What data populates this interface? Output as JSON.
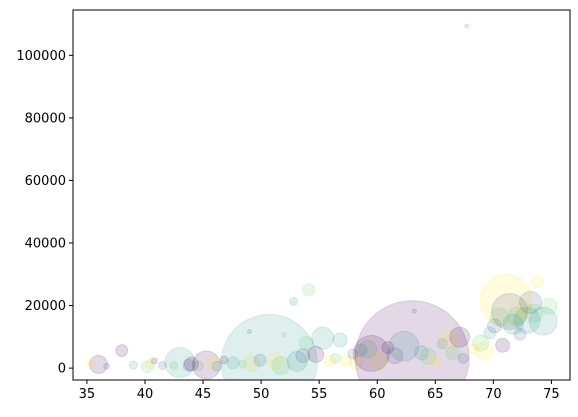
{
  "chart_data": {
    "type": "scatter",
    "title": "",
    "xlabel": "",
    "ylabel": "",
    "xlim": [
      33.8,
      76.6
    ],
    "ylim": [
      -3800,
      114500
    ],
    "x_ticks": [
      35,
      40,
      45,
      50,
      55,
      60,
      65,
      70,
      75
    ],
    "y_ticks": [
      0,
      20000,
      40000,
      60000,
      80000,
      100000
    ],
    "grid": false,
    "marker_alpha": 0.15,
    "colormap": "viridis",
    "points": [
      {
        "x": 36.0,
        "y": 1200,
        "size": 9,
        "color": "#440154"
      },
      {
        "x": 35.3,
        "y": 1600,
        "size": 4,
        "color": "#fde725"
      },
      {
        "x": 36.7,
        "y": 600,
        "size": 3,
        "color": "#3b528b"
      },
      {
        "x": 38.0,
        "y": 5600,
        "size": 6,
        "color": "#440154"
      },
      {
        "x": 39.0,
        "y": 1000,
        "size": 4,
        "color": "#21918c"
      },
      {
        "x": 40.2,
        "y": 500,
        "size": 6,
        "color": "#5ec962"
      },
      {
        "x": 40.5,
        "y": 1500,
        "size": 5,
        "color": "#fde725"
      },
      {
        "x": 40.8,
        "y": 2300,
        "size": 3,
        "color": "#440154"
      },
      {
        "x": 41.5,
        "y": 800,
        "size": 4,
        "color": "#3b528b"
      },
      {
        "x": 42.5,
        "y": 800,
        "size": 4,
        "color": "#5ec962"
      },
      {
        "x": 43.0,
        "y": 1800,
        "size": 15,
        "color": "#21918c"
      },
      {
        "x": 43.8,
        "y": 900,
        "size": 6,
        "color": "#3b528b"
      },
      {
        "x": 44.0,
        "y": 1300,
        "size": 7,
        "color": "#440154"
      },
      {
        "x": 44.6,
        "y": 700,
        "size": 5,
        "color": "#5ec962"
      },
      {
        "x": 45.3,
        "y": 1000,
        "size": 14,
        "color": "#440154"
      },
      {
        "x": 45.9,
        "y": 1800,
        "size": 7,
        "color": "#fde725"
      },
      {
        "x": 46.2,
        "y": 600,
        "size": 5,
        "color": "#21918c"
      },
      {
        "x": 46.8,
        "y": 2600,
        "size": 4,
        "color": "#440154"
      },
      {
        "x": 47.6,
        "y": 1700,
        "size": 6,
        "color": "#21918c"
      },
      {
        "x": 48.4,
        "y": 1300,
        "size": 4,
        "color": "#5ec962"
      },
      {
        "x": 49.0,
        "y": 11700,
        "size": 2,
        "color": "#3b528b"
      },
      {
        "x": 49.2,
        "y": 1500,
        "size": 8,
        "color": "#fde725"
      },
      {
        "x": 49.9,
        "y": 2500,
        "size": 6,
        "color": "#3b528b"
      },
      {
        "x": 50.7,
        "y": 1800,
        "size": 48,
        "color": "#21918c"
      },
      {
        "x": 51.2,
        "y": 2200,
        "size": 8,
        "color": "#fde725"
      },
      {
        "x": 51.7,
        "y": 800,
        "size": 9,
        "color": "#5ec962"
      },
      {
        "x": 52.0,
        "y": 10700,
        "size": 2,
        "color": "#5ec962"
      },
      {
        "x": 52.8,
        "y": 21300,
        "size": 4,
        "color": "#21918c"
      },
      {
        "x": 53.1,
        "y": 2100,
        "size": 10,
        "color": "#21918c"
      },
      {
        "x": 53.6,
        "y": 4000,
        "size": 7,
        "color": "#3b528b"
      },
      {
        "x": 53.9,
        "y": 7900,
        "size": 7,
        "color": "#5ec962"
      },
      {
        "x": 54.1,
        "y": 25000,
        "size": 6,
        "color": "#5ec962"
      },
      {
        "x": 54.7,
        "y": 4400,
        "size": 8,
        "color": "#440154"
      },
      {
        "x": 55.3,
        "y": 9600,
        "size": 11,
        "color": "#21918c"
      },
      {
        "x": 55.9,
        "y": 2300,
        "size": 6,
        "color": "#fde725"
      },
      {
        "x": 56.4,
        "y": 3100,
        "size": 5,
        "color": "#5ec962"
      },
      {
        "x": 56.8,
        "y": 9000,
        "size": 7,
        "color": "#21918c"
      },
      {
        "x": 57.3,
        "y": 2400,
        "size": 6,
        "color": "#fde725"
      },
      {
        "x": 57.9,
        "y": 4500,
        "size": 5,
        "color": "#3b528b"
      },
      {
        "x": 58.2,
        "y": 1800,
        "size": 7,
        "color": "#fde725"
      },
      {
        "x": 58.6,
        "y": 5800,
        "size": 6,
        "color": "#21918c"
      },
      {
        "x": 59.2,
        "y": 6000,
        "size": 9,
        "color": "#5ec962"
      },
      {
        "x": 59.5,
        "y": 4700,
        "size": 18,
        "color": "#440154"
      },
      {
        "x": 60.1,
        "y": 2200,
        "size": 9,
        "color": "#fde725"
      },
      {
        "x": 60.9,
        "y": 6600,
        "size": 6,
        "color": "#440154"
      },
      {
        "x": 61.5,
        "y": 4000,
        "size": 8,
        "color": "#3b528b"
      },
      {
        "x": 62.3,
        "y": 7000,
        "size": 15,
        "color": "#21918c"
      },
      {
        "x": 63.0,
        "y": 3300,
        "size": 57,
        "color": "#440154"
      },
      {
        "x": 63.2,
        "y": 18200,
        "size": 2,
        "color": "#3b528b"
      },
      {
        "x": 63.8,
        "y": 4900,
        "size": 7,
        "color": "#21918c"
      },
      {
        "x": 64.4,
        "y": 3700,
        "size": 8,
        "color": "#5ec962"
      },
      {
        "x": 65.0,
        "y": 2300,
        "size": 6,
        "color": "#fde725"
      },
      {
        "x": 65.6,
        "y": 7800,
        "size": 5,
        "color": "#21918c"
      },
      {
        "x": 66.2,
        "y": 9300,
        "size": 9,
        "color": "#fde725"
      },
      {
        "x": 66.5,
        "y": 4800,
        "size": 7,
        "color": "#5ec962"
      },
      {
        "x": 67.1,
        "y": 9900,
        "size": 10,
        "color": "#440154"
      },
      {
        "x": 67.4,
        "y": 3100,
        "size": 5,
        "color": "#3b528b"
      },
      {
        "x": 67.7,
        "y": 109400,
        "size": 2,
        "color": "#21918c"
      },
      {
        "x": 68.3,
        "y": 6200,
        "size": 5,
        "color": "#fde725"
      },
      {
        "x": 68.9,
        "y": 8000,
        "size": 8,
        "color": "#5ec962"
      },
      {
        "x": 69.2,
        "y": 5400,
        "size": 9,
        "color": "#fde725"
      },
      {
        "x": 69.7,
        "y": 11300,
        "size": 6,
        "color": "#21918c"
      },
      {
        "x": 70.1,
        "y": 13500,
        "size": 7,
        "color": "#3b528b"
      },
      {
        "x": 70.5,
        "y": 16300,
        "size": 9,
        "color": "#5ec962"
      },
      {
        "x": 70.8,
        "y": 7300,
        "size": 7,
        "color": "#440154"
      },
      {
        "x": 71.1,
        "y": 21700,
        "size": 26,
        "color": "#fde725"
      },
      {
        "x": 71.4,
        "y": 18100,
        "size": 18,
        "color": "#3b528b"
      },
      {
        "x": 71.7,
        "y": 14000,
        "size": 10,
        "color": "#21918c"
      },
      {
        "x": 72.0,
        "y": 16600,
        "size": 9,
        "color": "#5ec962"
      },
      {
        "x": 72.3,
        "y": 10800,
        "size": 6,
        "color": "#3b528b"
      },
      {
        "x": 72.6,
        "y": 18900,
        "size": 8,
        "color": "#fde725"
      },
      {
        "x": 72.9,
        "y": 15300,
        "size": 13,
        "color": "#21918c"
      },
      {
        "x": 73.2,
        "y": 21000,
        "size": 11,
        "color": "#3b528b"
      },
      {
        "x": 73.5,
        "y": 17600,
        "size": 9,
        "color": "#5ec962"
      },
      {
        "x": 73.8,
        "y": 27600,
        "size": 6,
        "color": "#fde725"
      },
      {
        "x": 74.3,
        "y": 15000,
        "size": 14,
        "color": "#21918c"
      },
      {
        "x": 74.8,
        "y": 19800,
        "size": 8,
        "color": "#5ec962"
      }
    ]
  }
}
